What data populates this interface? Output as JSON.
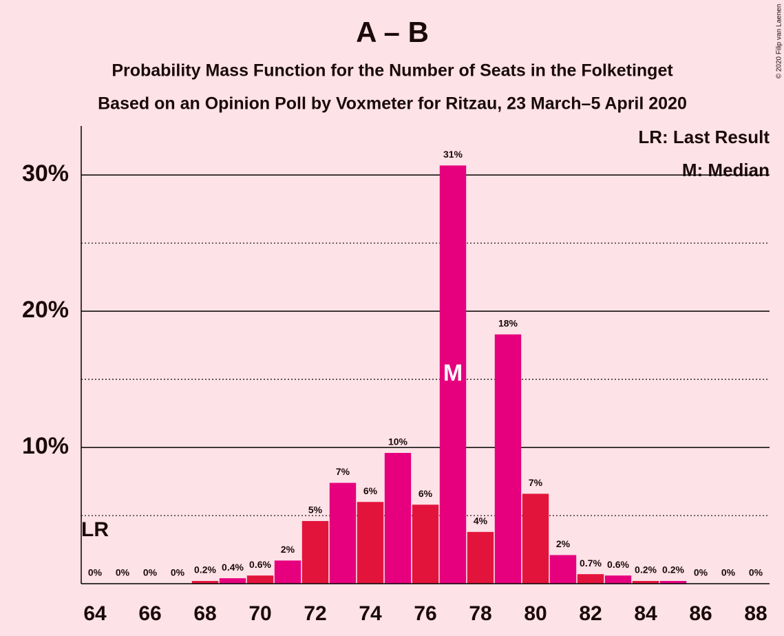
{
  "chart_data": {
    "type": "bar",
    "title": "A – B",
    "subtitle": "Probability Mass Function for the Number of Seats in the Folketinget",
    "subtitle2": "Based on an Opinion Poll by Voxmeter for Ritzau, 23 March–5 April 2020",
    "copyright": "© 2020 Filip van Laenen",
    "x": [
      64,
      65,
      66,
      67,
      68,
      69,
      70,
      71,
      72,
      73,
      74,
      75,
      76,
      77,
      78,
      79,
      80,
      81,
      82,
      83,
      84,
      85,
      86,
      87,
      88
    ],
    "values": [
      0,
      0,
      0,
      0,
      0.2,
      0.4,
      0.6,
      1.7,
      4.6,
      7.4,
      6.0,
      9.6,
      5.8,
      30.7,
      3.8,
      18.3,
      6.6,
      2.1,
      0.7,
      0.6,
      0.2,
      0.2,
      0,
      0,
      0
    ],
    "value_labels": [
      "0%",
      "0%",
      "0%",
      "0%",
      "0.2%",
      "0.4%",
      "0.6%",
      "2%",
      "5%",
      "7%",
      "6%",
      "10%",
      "6%",
      "31%",
      "4%",
      "18%",
      "7%",
      "2%",
      "0.7%",
      "0.6%",
      "0.2%",
      "0.2%",
      "0%",
      "0%",
      "0%"
    ],
    "colors": [
      "#e3143c",
      "#e6007e",
      "#e3143c",
      "#e6007e",
      "#e3143c",
      "#e6007e",
      "#e3143c",
      "#e6007e",
      "#e3143c",
      "#e6007e",
      "#e3143c",
      "#e6007e",
      "#e3143c",
      "#e6007e",
      "#e3143c",
      "#e6007e",
      "#e3143c",
      "#e6007e",
      "#e3143c",
      "#e6007e",
      "#e3143c",
      "#e6007e",
      "#e3143c",
      "#e6007e",
      "#e3143c"
    ],
    "xlim": [
      63.5,
      88.5
    ],
    "xticks": [
      64,
      66,
      68,
      70,
      72,
      74,
      76,
      78,
      80,
      82,
      84,
      86,
      88
    ],
    "ylim": [
      0,
      33.6
    ],
    "yticks": [
      {
        "value": 10,
        "label": "10%"
      },
      {
        "value": 20,
        "label": "20%"
      },
      {
        "value": 30,
        "label": "30%"
      }
    ],
    "minor_gridlines": [
      5,
      15,
      25
    ],
    "grid": true,
    "last_result": {
      "x": 64,
      "label": "LR"
    },
    "median": {
      "x": 77,
      "label": "M"
    },
    "legend": [
      "LR: Last Result",
      "M: Median"
    ]
  }
}
